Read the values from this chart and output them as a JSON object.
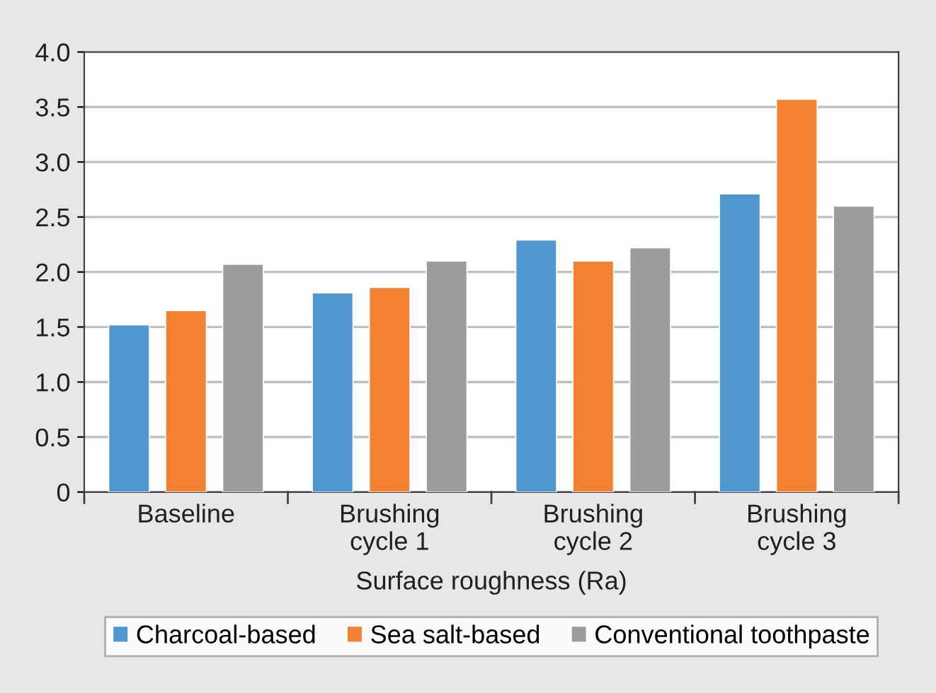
{
  "chart_data": {
    "type": "bar",
    "xlabel": "Surface roughness (Ra)",
    "categories": [
      "Baseline",
      "Brushing\ncycle 1",
      "Brushing\ncycle 2",
      "Brushing\ncycle 3"
    ],
    "series": [
      {
        "name": "Charcoal-based",
        "color": "#4e97d1",
        "values": [
          1.52,
          1.81,
          2.29,
          2.71
        ]
      },
      {
        "name": "Sea salt-based",
        "color": "#f28132",
        "values": [
          1.65,
          1.86,
          2.1,
          3.57
        ]
      },
      {
        "name": "Conventional toothpaste",
        "color": "#9a9c9d",
        "values": [
          2.07,
          2.1,
          2.22,
          2.6
        ]
      }
    ],
    "ylim": [
      0,
      4.0
    ],
    "yticks": [
      0,
      {
        "value": 0.5,
        "label": "0.5"
      },
      {
        "value": 1.0,
        "label": "1.0"
      },
      {
        "value": 1.5,
        "label": "1.5"
      },
      {
        "value": 2.0,
        "label": "2.0"
      },
      {
        "value": 2.5,
        "label": "2.5"
      },
      {
        "value": 3.0,
        "label": "3.0"
      },
      {
        "value": 3.5,
        "label": "3.5"
      },
      {
        "value": 4.0,
        "label": "4.0"
      }
    ],
    "grid": "y",
    "legend": "bottom"
  }
}
